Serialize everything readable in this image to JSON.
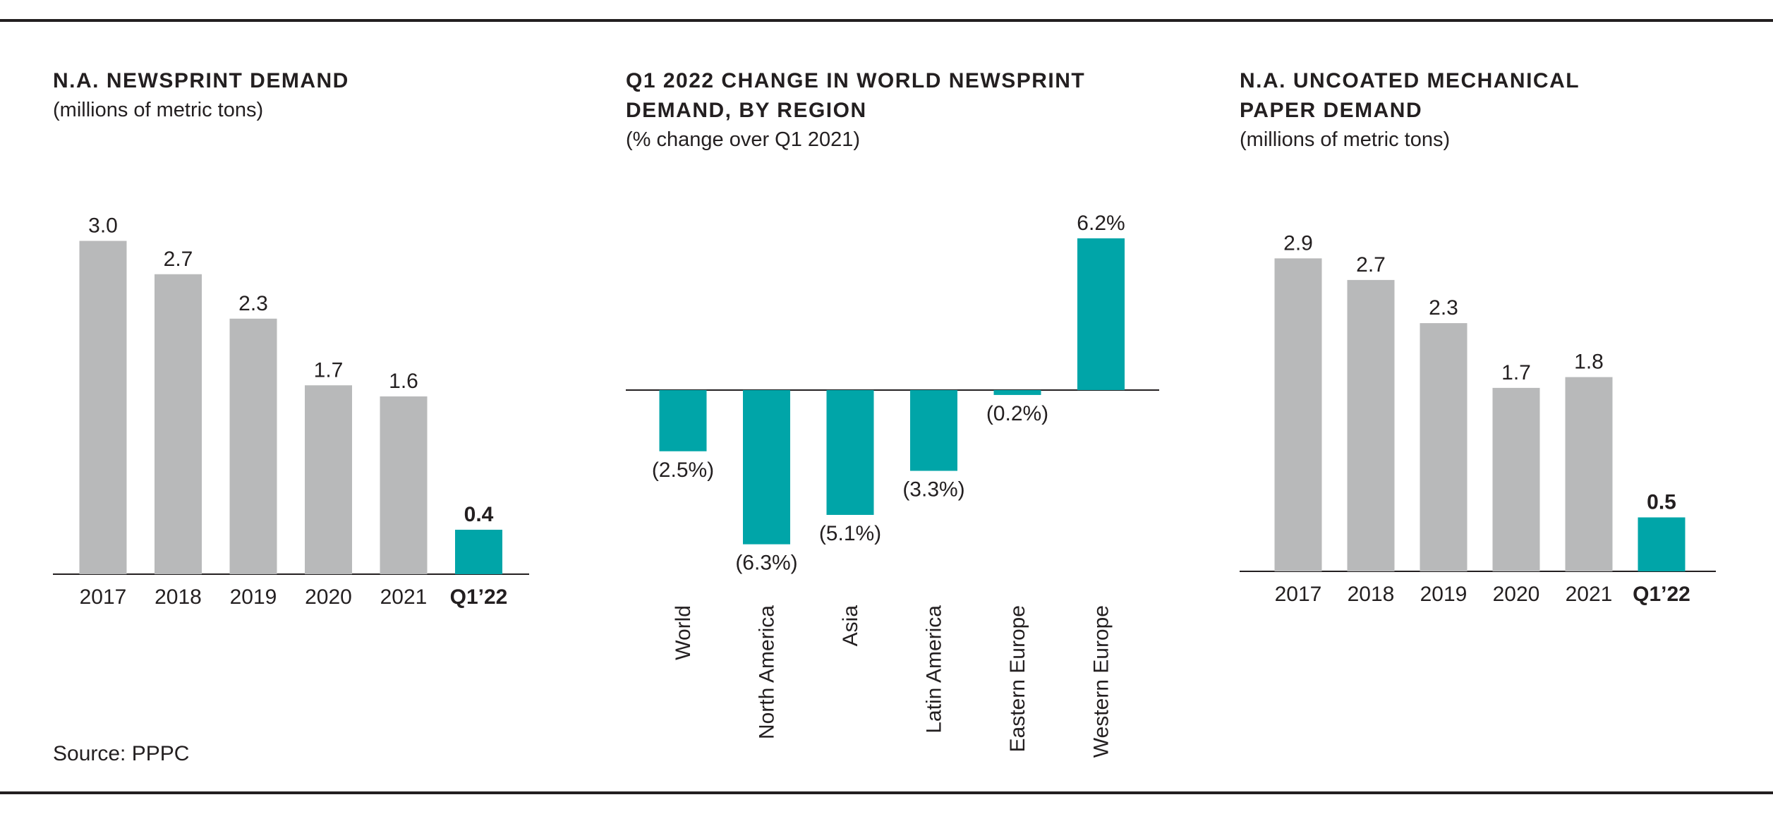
{
  "colors": {
    "gray_bar": "#b8b9ba",
    "teal_bar": "#00a5a8",
    "rule": "#231f20",
    "text": "#231f20"
  },
  "source": "Source: PPPC",
  "chart_data": [
    {
      "type": "bar",
      "title": "N.A. NEWSPRINT DEMAND",
      "subtitle": "(millions of metric tons)",
      "categories": [
        "2017",
        "2018",
        "2019",
        "2020",
        "2021",
        "Q1’22"
      ],
      "values": [
        3.0,
        2.7,
        2.3,
        1.7,
        1.6,
        0.4
      ],
      "value_labels": [
        "3.0",
        "2.7",
        "2.3",
        "1.7",
        "1.6",
        "0.4"
      ],
      "highlight_index": 5,
      "ylim": [
        0,
        3.2
      ],
      "grid": false
    },
    {
      "type": "bar",
      "title": "Q1 2022 CHANGE IN WORLD NEWSPRINT\nDEMAND, BY REGION",
      "subtitle": "(% change over Q1 2021)",
      "categories": [
        "World",
        "North America",
        "Asia",
        "Latin America",
        "Eastern Europe",
        "Western Europe"
      ],
      "values": [
        -2.5,
        -6.3,
        -5.1,
        -3.3,
        -0.2,
        6.2
      ],
      "value_labels": [
        "(2.5%)",
        "(6.3%)",
        "(5.1%)",
        "(3.3%)",
        "(0.2%)",
        "6.2%"
      ],
      "ylim": [
        -7,
        7
      ],
      "grid": false
    },
    {
      "type": "bar",
      "title": "N.A. UNCOATED MECHANICAL\nPAPER DEMAND",
      "subtitle": "(millions of metric tons)",
      "categories": [
        "2017",
        "2018",
        "2019",
        "2020",
        "2021",
        "Q1’22"
      ],
      "values": [
        2.9,
        2.7,
        2.3,
        1.7,
        1.8,
        0.5
      ],
      "value_labels": [
        "2.9",
        "2.7",
        "2.3",
        "1.7",
        "1.8",
        "0.5"
      ],
      "highlight_index": 5,
      "ylim": [
        0,
        3.2
      ],
      "grid": false
    }
  ]
}
